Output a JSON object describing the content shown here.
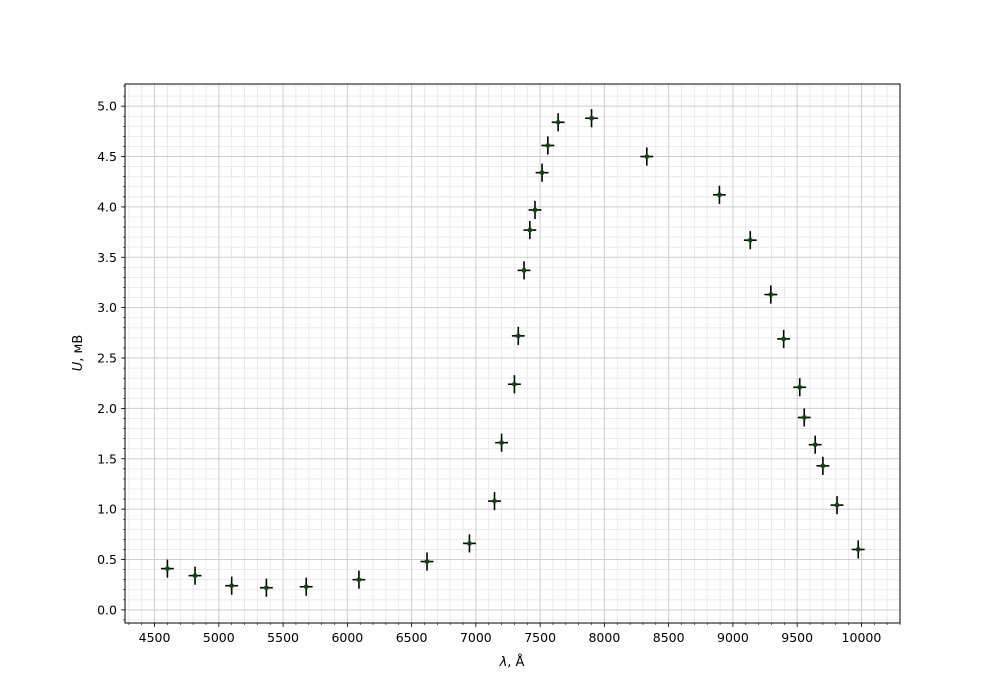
{
  "chart_data": {
    "type": "scatter",
    "title": "",
    "xlabel_var": "λ",
    "xlabel_unit": ", Å",
    "ylabel_var": "U",
    "ylabel_unit": ", мВ",
    "xlim": [
      4270,
      10300
    ],
    "ylim": [
      -0.13,
      5.22
    ],
    "x_ticks": [
      4500,
      5000,
      5500,
      6000,
      6500,
      7000,
      7500,
      8000,
      8500,
      9000,
      9500,
      10000
    ],
    "x_tick_labels": [
      "4500",
      "5000",
      "5500",
      "6000",
      "6500",
      "7000",
      "7500",
      "8000",
      "8500",
      "9000",
      "9500",
      "10000"
    ],
    "y_ticks": [
      0.0,
      0.5,
      1.0,
      1.5,
      2.0,
      2.5,
      3.0,
      3.5,
      4.0,
      4.5,
      5.0
    ],
    "y_tick_labels": [
      "0.0",
      "0.5",
      "1.0",
      "1.5",
      "2.0",
      "2.5",
      "3.0",
      "3.5",
      "4.0",
      "4.5",
      "5.0"
    ],
    "x_minor_step": 100,
    "y_minor_step": 0.1,
    "grid": true,
    "marker_color": "#0b4a0b",
    "errorbar_color": "#000000",
    "x_error": 50,
    "y_error": 0.09,
    "points": [
      {
        "x": 4600,
        "y": 0.41
      },
      {
        "x": 4815,
        "y": 0.34
      },
      {
        "x": 5100,
        "y": 0.24
      },
      {
        "x": 5370,
        "y": 0.22
      },
      {
        "x": 5680,
        "y": 0.23
      },
      {
        "x": 6090,
        "y": 0.3
      },
      {
        "x": 6620,
        "y": 0.48
      },
      {
        "x": 6950,
        "y": 0.66
      },
      {
        "x": 7145,
        "y": 1.08
      },
      {
        "x": 7200,
        "y": 1.66
      },
      {
        "x": 7300,
        "y": 2.24
      },
      {
        "x": 7330,
        "y": 2.72
      },
      {
        "x": 7375,
        "y": 3.37
      },
      {
        "x": 7420,
        "y": 3.77
      },
      {
        "x": 7460,
        "y": 3.97
      },
      {
        "x": 7515,
        "y": 4.34
      },
      {
        "x": 7560,
        "y": 4.61
      },
      {
        "x": 7640,
        "y": 4.84
      },
      {
        "x": 7900,
        "y": 4.88
      },
      {
        "x": 8330,
        "y": 4.5
      },
      {
        "x": 8895,
        "y": 4.12
      },
      {
        "x": 9135,
        "y": 3.67
      },
      {
        "x": 9295,
        "y": 3.13
      },
      {
        "x": 9395,
        "y": 2.69
      },
      {
        "x": 9520,
        "y": 2.21
      },
      {
        "x": 9555,
        "y": 1.91
      },
      {
        "x": 9640,
        "y": 1.64
      },
      {
        "x": 9700,
        "y": 1.43
      },
      {
        "x": 9810,
        "y": 1.04
      },
      {
        "x": 9975,
        "y": 0.6
      }
    ]
  }
}
